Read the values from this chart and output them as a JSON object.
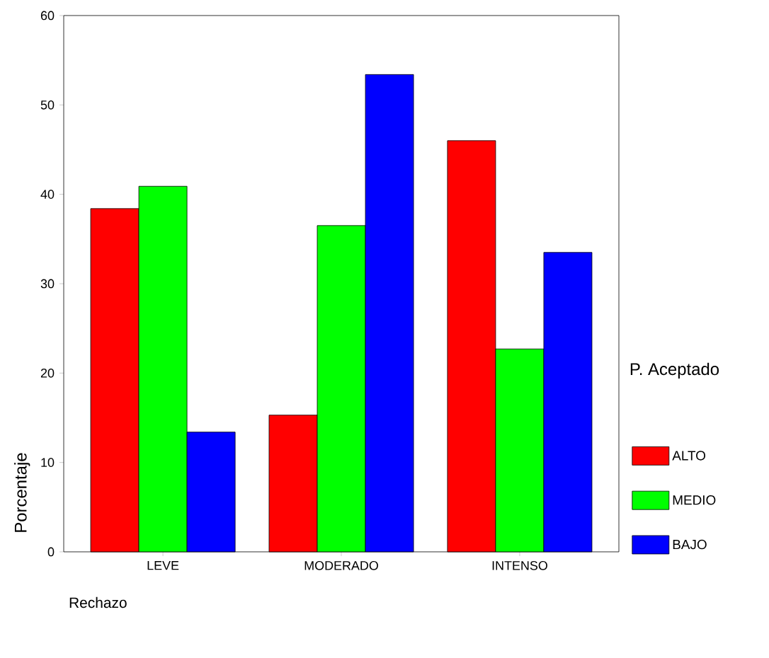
{
  "chart_data": {
    "type": "bar",
    "xlabel": "Rechazo",
    "ylabel": "Porcentaje",
    "legend_title": "P. Aceptado",
    "categories": [
      "LEVE",
      "MODERADO",
      "INTENSO"
    ],
    "series": [
      {
        "name": "ALTO",
        "color": "#ff0000",
        "values": [
          38.4,
          15.3,
          46.0
        ]
      },
      {
        "name": "MEDIO",
        "color": "#00ff00",
        "values": [
          40.9,
          36.5,
          22.7
        ]
      },
      {
        "name": "BAJO",
        "color": "#0000ff",
        "values": [
          13.4,
          53.4,
          33.5
        ]
      }
    ],
    "ylim": [
      0,
      60
    ],
    "yticks": [
      0,
      10,
      20,
      30,
      40,
      50,
      60
    ],
    "legend": "right",
    "grid": false
  }
}
